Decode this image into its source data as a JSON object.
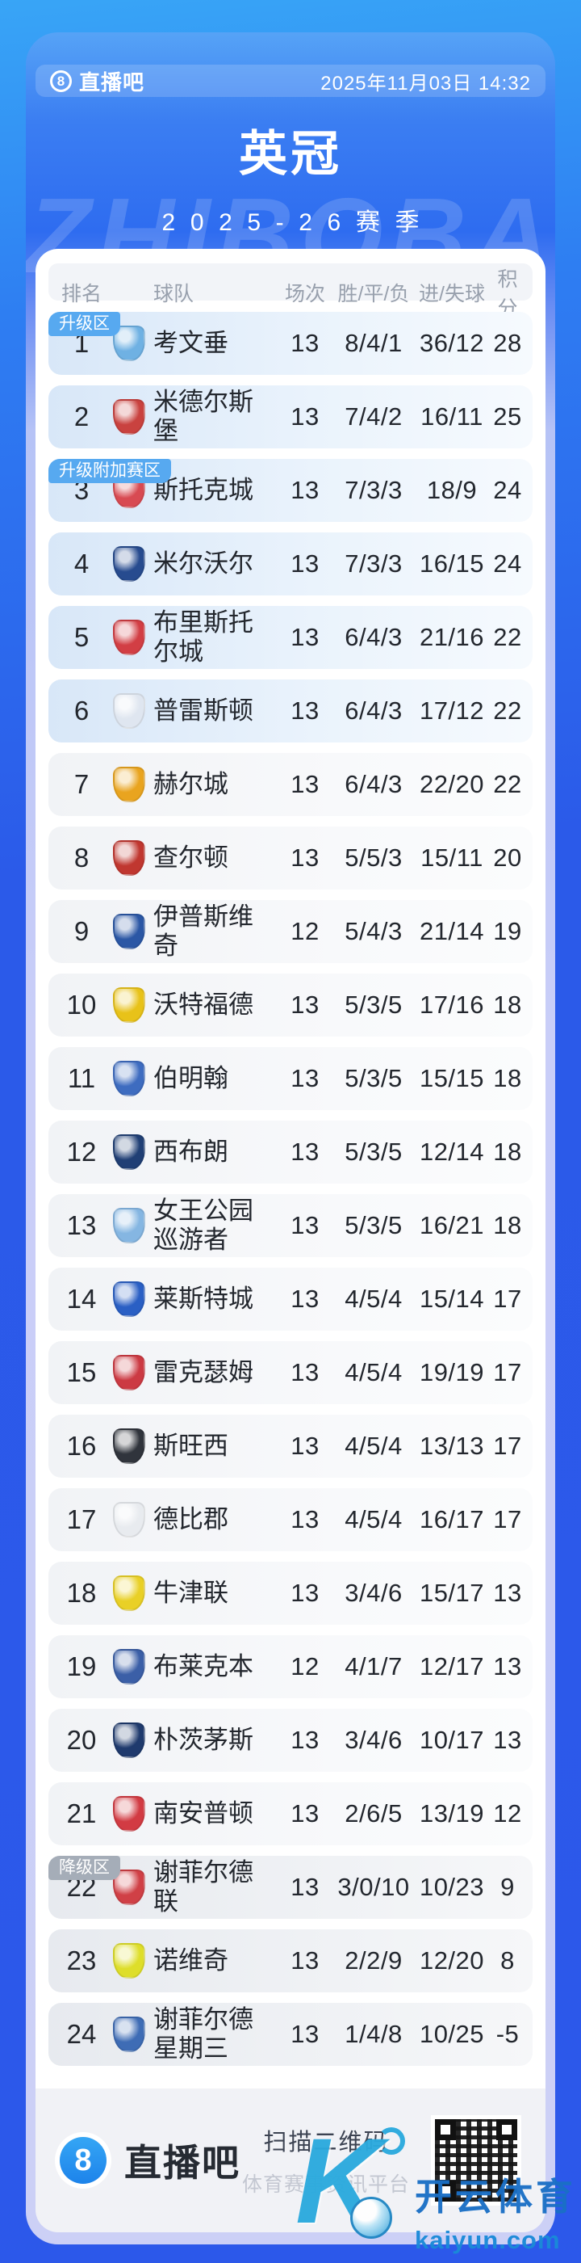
{
  "header": {
    "brand": "直播吧",
    "logo_glyph": "8",
    "datetime": "2025年11月03日 14:32",
    "title": "英冠",
    "season": "2025-26赛季",
    "watermark": "ZHIBOBA"
  },
  "table": {
    "columns": [
      "排名",
      "球队",
      "场次",
      "胜/平/负",
      "进/失球",
      "积分"
    ],
    "zones": {
      "promotion": "升级区",
      "playoff": "升级附加赛区",
      "relegation": "降级区"
    },
    "rows": [
      {
        "rank": "1",
        "team": "考文垂",
        "played": "13",
        "wdl": "8/4/1",
        "goals": "36/12",
        "points": "28",
        "zone": "promotion",
        "badge": "升级区",
        "crest": "#6fb1e3"
      },
      {
        "rank": "2",
        "team": "米德尔斯堡",
        "played": "13",
        "wdl": "7/4/2",
        "goals": "16/11",
        "points": "25",
        "zone": "promotion",
        "crest": "#c9423f"
      },
      {
        "rank": "3",
        "team": "斯托克城",
        "played": "13",
        "wdl": "7/3/3",
        "goals": "18/9",
        "points": "24",
        "zone": "playoff",
        "badge": "升级附加赛区",
        "crest": "#d84a52"
      },
      {
        "rank": "4",
        "team": "米尔沃尔",
        "played": "13",
        "wdl": "7/3/3",
        "goals": "16/15",
        "points": "24",
        "zone": "playoff",
        "crest": "#274b8f"
      },
      {
        "rank": "5",
        "team": "布里斯托尔城",
        "played": "13",
        "wdl": "6/4/3",
        "goals": "21/16",
        "points": "22",
        "zone": "playoff",
        "crest": "#d23e44"
      },
      {
        "rank": "6",
        "team": "普雷斯顿",
        "played": "13",
        "wdl": "6/4/3",
        "goals": "17/12",
        "points": "22",
        "zone": "playoff",
        "crest": "#dfe6f0"
      },
      {
        "rank": "7",
        "team": "赫尔城",
        "played": "13",
        "wdl": "6/4/3",
        "goals": "22/20",
        "points": "22",
        "zone": "mid",
        "crest": "#e9a41f"
      },
      {
        "rank": "8",
        "team": "查尔顿",
        "played": "13",
        "wdl": "5/5/3",
        "goals": "15/11",
        "points": "20",
        "zone": "mid",
        "crest": "#c03730"
      },
      {
        "rank": "9",
        "team": "伊普斯维奇",
        "played": "12",
        "wdl": "5/4/3",
        "goals": "21/14",
        "points": "19",
        "zone": "mid",
        "crest": "#2b57a5"
      },
      {
        "rank": "10",
        "team": "沃特福德",
        "played": "13",
        "wdl": "5/3/5",
        "goals": "17/16",
        "points": "18",
        "zone": "mid",
        "crest": "#e8c219"
      },
      {
        "rank": "11",
        "team": "伯明翰",
        "played": "13",
        "wdl": "5/3/5",
        "goals": "15/15",
        "points": "18",
        "zone": "mid",
        "crest": "#3e6cc0"
      },
      {
        "rank": "12",
        "team": "西布朗",
        "played": "13",
        "wdl": "5/3/5",
        "goals": "12/14",
        "points": "18",
        "zone": "mid",
        "crest": "#203f75"
      },
      {
        "rank": "13",
        "team": "女王公园巡游者",
        "played": "13",
        "wdl": "5/3/5",
        "goals": "16/21",
        "points": "18",
        "zone": "mid",
        "crest": "#85b6e2"
      },
      {
        "rank": "14",
        "team": "莱斯特城",
        "played": "13",
        "wdl": "4/5/4",
        "goals": "15/14",
        "points": "17",
        "zone": "mid",
        "crest": "#2a5fc4"
      },
      {
        "rank": "15",
        "team": "雷克瑟姆",
        "played": "13",
        "wdl": "4/5/4",
        "goals": "19/19",
        "points": "17",
        "zone": "mid",
        "crest": "#cc3a43"
      },
      {
        "rank": "16",
        "team": "斯旺西",
        "played": "13",
        "wdl": "4/5/4",
        "goals": "13/13",
        "points": "17",
        "zone": "mid",
        "crest": "#30343c"
      },
      {
        "rank": "17",
        "team": "德比郡",
        "played": "13",
        "wdl": "4/5/4",
        "goals": "16/17",
        "points": "17",
        "zone": "mid",
        "crest": "#e8ebef"
      },
      {
        "rank": "18",
        "team": "牛津联",
        "played": "13",
        "wdl": "3/4/6",
        "goals": "15/17",
        "points": "13",
        "zone": "mid",
        "crest": "#e9d026"
      },
      {
        "rank": "19",
        "team": "布莱克本",
        "played": "12",
        "wdl": "4/1/7",
        "goals": "12/17",
        "points": "13",
        "zone": "mid",
        "crest": "#3b5fa7"
      },
      {
        "rank": "20",
        "team": "朴茨茅斯",
        "played": "13",
        "wdl": "3/4/6",
        "goals": "10/17",
        "points": "13",
        "zone": "mid",
        "crest": "#1f3a6d"
      },
      {
        "rank": "21",
        "team": "南安普顿",
        "played": "13",
        "wdl": "2/6/5",
        "goals": "13/19",
        "points": "12",
        "zone": "mid",
        "crest": "#d23b43"
      },
      {
        "rank": "22",
        "team": "谢菲尔德联",
        "played": "13",
        "wdl": "3/0/10",
        "goals": "10/23",
        "points": "9",
        "zone": "relegation",
        "badge": "降级区",
        "crest": "#d04046"
      },
      {
        "rank": "23",
        "team": "诺维奇",
        "played": "13",
        "wdl": "2/2/9",
        "goals": "12/20",
        "points": "8",
        "zone": "relegation",
        "crest": "#dede2a"
      },
      {
        "rank": "24",
        "team": "谢菲尔德星期三",
        "played": "13",
        "wdl": "1/4/8",
        "goals": "10/25",
        "points": "-5",
        "zone": "relegation",
        "crest": "#3e6cb5"
      }
    ]
  },
  "footer": {
    "brand": "直播吧",
    "logo_glyph": "8",
    "scan_label": "扫描二维码",
    "platform_label": "体育赛事资讯平台"
  },
  "watermark": {
    "letter": "K",
    "brand": "开云体育",
    "domain": "kaiyun.com"
  },
  "colors": {
    "accent_blue": "#2e6cf0",
    "badge": {
      "promotion": "#57a9f0",
      "playoff": "#57a9f0",
      "relegation": "#a5adb8"
    }
  }
}
